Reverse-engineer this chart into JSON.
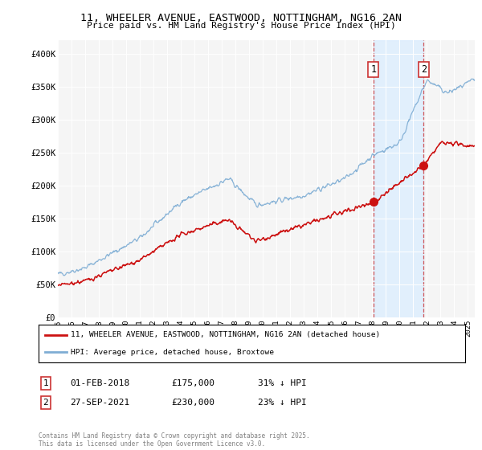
{
  "title_line1": "11, WHEELER AVENUE, EASTWOOD, NOTTINGHAM, NG16 2AN",
  "title_line2": "Price paid vs. HM Land Registry's House Price Index (HPI)",
  "background_color": "#ffffff",
  "plot_bg_color": "#f5f5f5",
  "hpi_color": "#7eadd4",
  "price_color": "#cc1111",
  "dashed_color": "#cc3333",
  "shade_color": "#ddeeff",
  "ylim": [
    0,
    420000
  ],
  "yticks": [
    0,
    50000,
    100000,
    150000,
    200000,
    250000,
    300000,
    350000,
    400000
  ],
  "ytick_labels": [
    "£0",
    "£50K",
    "£100K",
    "£150K",
    "£200K",
    "£250K",
    "£300K",
    "£350K",
    "£400K"
  ],
  "legend1_label": "11, WHEELER AVENUE, EASTWOOD, NOTTINGHAM, NG16 2AN (detached house)",
  "legend2_label": "HPI: Average price, detached house, Broxtowe",
  "annotation1_date": "01-FEB-2018",
  "annotation1_price": "£175,000",
  "annotation1_pct": "31% ↓ HPI",
  "annotation2_date": "27-SEP-2021",
  "annotation2_price": "£230,000",
  "annotation2_pct": "23% ↓ HPI",
  "footer": "Contains HM Land Registry data © Crown copyright and database right 2025.\nThis data is licensed under the Open Government Licence v3.0.",
  "vline1_x": 2018.083,
  "vline2_x": 2021.75,
  "sale1_x": 2018.083,
  "sale1_y": 175000,
  "sale2_x": 2021.75,
  "sale2_y": 230000,
  "xlim_start": 1995,
  "xlim_end": 2025.5
}
